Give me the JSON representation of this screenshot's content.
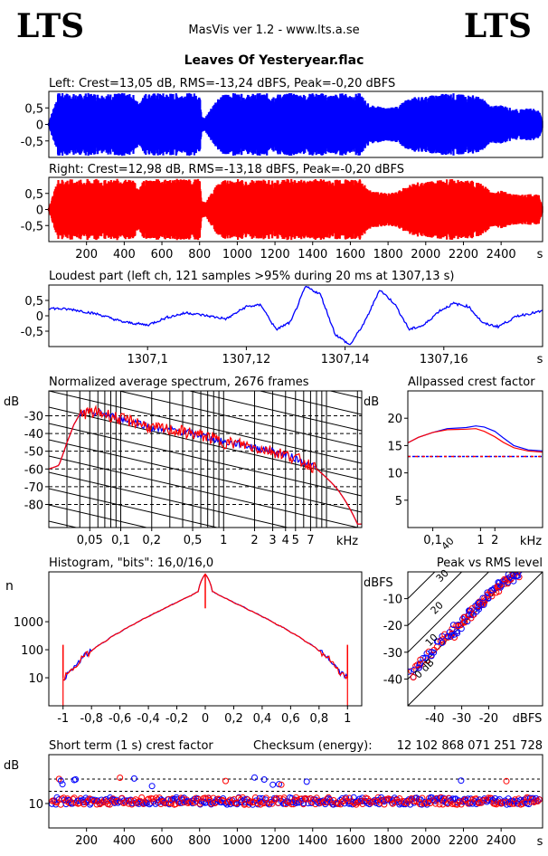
{
  "header": {
    "logo_left": "LTS",
    "logo_right": "LTS",
    "app_title": "MasVis ver 1.2 - www.lts.a.se",
    "file_title": "Leaves Of Yesteryear.flac"
  },
  "colors": {
    "left": "#0000ff",
    "right": "#ff0000"
  },
  "chart_data": [
    {
      "type": "area",
      "id": "left",
      "title": "Left: Crest=13,05 dB, RMS=-13,24 dBFS, Peak=-0,20 dBFS",
      "ytick_labels": [
        "0,5",
        "0",
        "-0,5"
      ],
      "yticks": [
        0.5,
        0,
        -0.5
      ],
      "ylim": [
        -1,
        1
      ],
      "xlim": [
        0,
        2620
      ],
      "envelope_x": [
        0,
        50,
        100,
        150,
        200,
        250,
        300,
        350,
        400,
        450,
        480,
        500,
        550,
        600,
        650,
        700,
        750,
        800,
        810,
        830,
        850,
        900,
        950,
        1000,
        1050,
        1100,
        1150,
        1200,
        1250,
        1300,
        1350,
        1400,
        1450,
        1500,
        1550,
        1600,
        1650,
        1700,
        1750,
        1800,
        1850,
        1900,
        1950,
        2000,
        2050,
        2100,
        2150,
        2200,
        2250,
        2300,
        2350,
        2400,
        2450,
        2500,
        2550,
        2600,
        2620
      ],
      "envelope_y": [
        0.05,
        0.95,
        0.95,
        0.92,
        0.95,
        0.95,
        0.92,
        0.95,
        0.95,
        0.9,
        0.6,
        0.95,
        0.95,
        0.95,
        0.95,
        0.95,
        0.95,
        0.95,
        0.3,
        0.2,
        0.4,
        0.85,
        0.95,
        0.95,
        0.9,
        0.95,
        0.95,
        0.9,
        0.95,
        0.95,
        0.92,
        0.95,
        0.95,
        0.9,
        0.95,
        0.92,
        0.95,
        0.6,
        0.55,
        0.5,
        0.55,
        0.75,
        0.85,
        0.85,
        0.9,
        0.95,
        0.95,
        0.9,
        0.9,
        0.8,
        0.55,
        0.6,
        0.5,
        0.45,
        0.5,
        0.45,
        0.1
      ]
    },
    {
      "type": "area",
      "id": "right",
      "title": "Right: Crest=12,98 dB, RMS=-13,18 dBFS, Peak=-0,20 dBFS",
      "ytick_labels": [
        "0,5",
        "0",
        "-0,5"
      ],
      "yticks": [
        0.5,
        0,
        -0.5
      ],
      "ylim": [
        -1,
        1
      ],
      "xlim": [
        0,
        2620
      ],
      "xticks": [
        200,
        400,
        600,
        800,
        1000,
        1200,
        1400,
        1600,
        1800,
        2000,
        2200,
        2400
      ],
      "xtick_labels": [
        "200",
        "400",
        "600",
        "800",
        "1000",
        "1200",
        "1400",
        "1600",
        "1800",
        "2000",
        "2200",
        "2400"
      ],
      "x_unit": "s",
      "envelope_x": [
        0,
        50,
        100,
        150,
        200,
        250,
        300,
        350,
        400,
        450,
        480,
        500,
        550,
        600,
        650,
        700,
        750,
        800,
        810,
        830,
        850,
        900,
        950,
        1000,
        1050,
        1100,
        1150,
        1200,
        1250,
        1300,
        1350,
        1400,
        1450,
        1500,
        1550,
        1600,
        1650,
        1700,
        1750,
        1800,
        1850,
        1900,
        1950,
        2000,
        2050,
        2100,
        2150,
        2200,
        2250,
        2300,
        2350,
        2400,
        2450,
        2500,
        2550,
        2600,
        2620
      ],
      "envelope_y": [
        0.05,
        0.95,
        0.95,
        0.92,
        0.95,
        0.95,
        0.92,
        0.95,
        0.95,
        0.9,
        0.6,
        0.95,
        0.95,
        0.95,
        0.95,
        0.95,
        0.95,
        0.95,
        0.3,
        0.2,
        0.4,
        0.85,
        0.95,
        0.95,
        0.9,
        0.95,
        0.95,
        0.9,
        0.95,
        0.95,
        0.92,
        0.95,
        0.95,
        0.9,
        0.95,
        0.92,
        0.95,
        0.6,
        0.55,
        0.5,
        0.55,
        0.75,
        0.85,
        0.85,
        0.9,
        0.95,
        0.95,
        0.9,
        0.9,
        0.8,
        0.55,
        0.6,
        0.5,
        0.45,
        0.5,
        0.45,
        0.1
      ]
    },
    {
      "type": "line",
      "id": "loudest",
      "title": "Loudest part (left  ch, 121 samples >95% during 20 ms at 1307,13 s)",
      "ytick_labels": [
        "0,5",
        "0",
        "-0,5"
      ],
      "yticks": [
        0.5,
        0,
        -0.5
      ],
      "ylim": [
        -1,
        1
      ],
      "xlim": [
        1307.08,
        1307.18
      ],
      "xticks": [
        1307.1,
        1307.12,
        1307.14,
        1307.16
      ],
      "xtick_labels": [
        "1307,1",
        "1307,12",
        "1307,14",
        "1307,16"
      ],
      "x_unit": "s",
      "x": [
        1307.08,
        1307.085,
        1307.09,
        1307.095,
        1307.1,
        1307.104,
        1307.108,
        1307.112,
        1307.116,
        1307.12,
        1307.123,
        1307.126,
        1307.129,
        1307.132,
        1307.135,
        1307.138,
        1307.141,
        1307.144,
        1307.147,
        1307.15,
        1307.153,
        1307.156,
        1307.159,
        1307.162,
        1307.165,
        1307.168,
        1307.171,
        1307.175,
        1307.18
      ],
      "y": [
        0.25,
        0.2,
        0.05,
        -0.2,
        -0.3,
        -0.05,
        0.1,
        0.0,
        -0.1,
        0.3,
        0.35,
        -0.45,
        -0.2,
        0.95,
        0.7,
        -0.6,
        -0.95,
        -0.2,
        0.85,
        0.4,
        -0.45,
        -0.3,
        0.15,
        0.4,
        0.3,
        -0.25,
        -0.35,
        0.0,
        0.15
      ]
    },
    {
      "type": "line",
      "id": "spectrum",
      "title": "Normalized average spectrum, 2676 frames",
      "ylabel": "dB",
      "ytick_labels": [
        "-30",
        "-40",
        "-50",
        "-60",
        "-70",
        "-80"
      ],
      "yticks": [
        -30,
        -40,
        -50,
        -60,
        -70,
        -80
      ],
      "ylim": [
        -93,
        -16
      ],
      "xscale": "log",
      "xlim": [
        0.02,
        22
      ],
      "xticks": [
        0.05,
        0.1,
        0.2,
        0.5,
        1,
        2,
        3,
        4,
        5,
        7
      ],
      "xtick_labels": [
        "0,05",
        "0,1",
        "0,2",
        "0,5",
        "1",
        "2",
        "3",
        "4",
        "5",
        "7"
      ],
      "x_unit": "kHz",
      "x": [
        0.02,
        0.025,
        0.03,
        0.035,
        0.04,
        0.05,
        0.07,
        0.1,
        0.15,
        0.2,
        0.3,
        0.5,
        0.7,
        1,
        1.5,
        2,
        3,
        4,
        5,
        6,
        7,
        8,
        10,
        13,
        16,
        20
      ],
      "y": [
        -60,
        -58,
        -45,
        -35,
        -29,
        -28,
        -29,
        -32,
        -34,
        -37,
        -38,
        -40,
        -42,
        -45,
        -46,
        -48,
        -50,
        -52,
        -54,
        -56,
        -58,
        -60,
        -65,
        -72,
        -80,
        -91
      ]
    },
    {
      "type": "line",
      "id": "crest",
      "title": "Allpassed crest factor",
      "ylabel": "dB",
      "ytick_labels": [
        "20",
        "15",
        "10",
        "5"
      ],
      "yticks": [
        20,
        15,
        10,
        5
      ],
      "ylim": [
        0,
        25
      ],
      "xscale": "log",
      "xlim": [
        0.03,
        20
      ],
      "xticks": [
        0.1,
        1,
        2
      ],
      "xtick_labels": [
        "0,1",
        "1",
        "2"
      ],
      "x_unit": "kHz",
      "reference_db": 13,
      "series": [
        {
          "x": [
            0.03,
            0.05,
            0.1,
            0.2,
            0.5,
            0.8,
            1.2,
            2,
            3,
            5,
            10,
            20
          ],
          "y": [
            15.5,
            16.5,
            17.4,
            18.1,
            18.3,
            18.6,
            18.4,
            17.6,
            16.4,
            15.0,
            14.2,
            14.0
          ]
        },
        {
          "x": [
            0.03,
            0.05,
            0.1,
            0.2,
            0.5,
            0.8,
            1.2,
            2,
            3,
            5,
            10,
            20
          ],
          "y": [
            15.5,
            16.5,
            17.4,
            17.9,
            18.0,
            18.1,
            17.6,
            16.6,
            15.6,
            14.6,
            14.0,
            13.8
          ]
        }
      ]
    },
    {
      "type": "line",
      "id": "histogram",
      "title": "Histogram, \"bits\": 16,0/16,0",
      "ylabel": "n",
      "yscale": "log",
      "ytick_labels": [
        "1000",
        "100",
        "10"
      ],
      "yticks": [
        1000,
        100,
        10
      ],
      "ylim": [
        1,
        60000
      ],
      "xlim": [
        -1.1,
        1.1
      ],
      "xticks": [
        -1,
        -0.8,
        -0.6,
        -0.4,
        -0.2,
        0,
        0.2,
        0.4,
        0.6,
        0.8,
        1
      ],
      "xtick_labels": [
        "-1",
        "-0,8",
        "-0,6",
        "-0,4",
        "-0,2",
        "0",
        "0,2",
        "0,4",
        "0,6",
        "0,8",
        "1"
      ],
      "x": [
        -1,
        -0.95,
        -0.9,
        -0.8,
        -0.7,
        -0.6,
        -0.5,
        -0.4,
        -0.3,
        -0.2,
        -0.1,
        -0.05,
        0,
        0.05,
        0.1,
        0.2,
        0.3,
        0.4,
        0.5,
        0.6,
        0.7,
        0.8,
        0.9,
        0.95,
        1
      ],
      "y": [
        10,
        15,
        30,
        90,
        200,
        420,
        800,
        1500,
        2700,
        4800,
        8500,
        12000,
        50000,
        12000,
        8500,
        4800,
        2700,
        1500,
        800,
        420,
        200,
        90,
        30,
        15,
        10
      ]
    },
    {
      "type": "scatter",
      "id": "peak_rms",
      "title": "Peak vs RMS level",
      "ylabel": "dBFS",
      "xlabel": "dBFS",
      "ytick_labels": [
        "-10",
        "-20",
        "-30",
        "-40"
      ],
      "yticks": [
        -10,
        -20,
        -30,
        -40
      ],
      "ylim": [
        -50,
        0
      ],
      "xticks": [
        -40,
        -30,
        -20
      ],
      "xtick_labels": [
        "-40",
        "-30",
        "-20"
      ],
      "xlim": [
        -50,
        0
      ],
      "diagonal_labels": [
        "40",
        "30",
        "20",
        "10",
        "0 dB"
      ],
      "diagonal_offsets": [
        40,
        30,
        20,
        10,
        0
      ],
      "points_x": [
        -49,
        -47,
        -46,
        -44,
        -42,
        -40,
        -38,
        -36,
        -35,
        -34,
        -33,
        -32,
        -31,
        -30,
        -29,
        -28,
        -27,
        -26,
        -25,
        -24,
        -23,
        -22,
        -21,
        -20,
        -19,
        -18,
        -17,
        -16,
        -15,
        -14,
        -13,
        -12,
        -11,
        -10,
        -9
      ],
      "points_y": [
        -38,
        -36,
        -35,
        -33,
        -30,
        -29,
        -27,
        -25,
        -24,
        -23,
        -22,
        -21,
        -20,
        -19,
        -18,
        -17,
        -16,
        -15,
        -14,
        -13,
        -12,
        -11,
        -10,
        -9,
        -8,
        -7,
        -6,
        -5,
        -4,
        -4,
        -3,
        -2,
        -1,
        -1,
        -1
      ]
    },
    {
      "type": "scatter",
      "id": "short_term",
      "title": "Short term (1 s) crest factor",
      "ylabel": "dB",
      "ytick_labels": [
        "10"
      ],
      "yticks": [
        10
      ],
      "ylim": [
        0,
        30
      ],
      "xlim": [
        0,
        2620
      ],
      "xticks": [
        200,
        400,
        600,
        800,
        1000,
        1200,
        1400,
        1600,
        1800,
        2000,
        2200,
        2400
      ],
      "xtick_labels": [
        "200",
        "400",
        "600",
        "800",
        "1000",
        "1200",
        "1400",
        "1600",
        "1800",
        "2000",
        "2200",
        "2400"
      ],
      "x_unit": "s",
      "dashed_levels_db": [
        20,
        15
      ],
      "typical_db": 11
    }
  ],
  "checksum": {
    "label": "Checksum (energy):",
    "value": "12 102 868 071 251 728"
  }
}
